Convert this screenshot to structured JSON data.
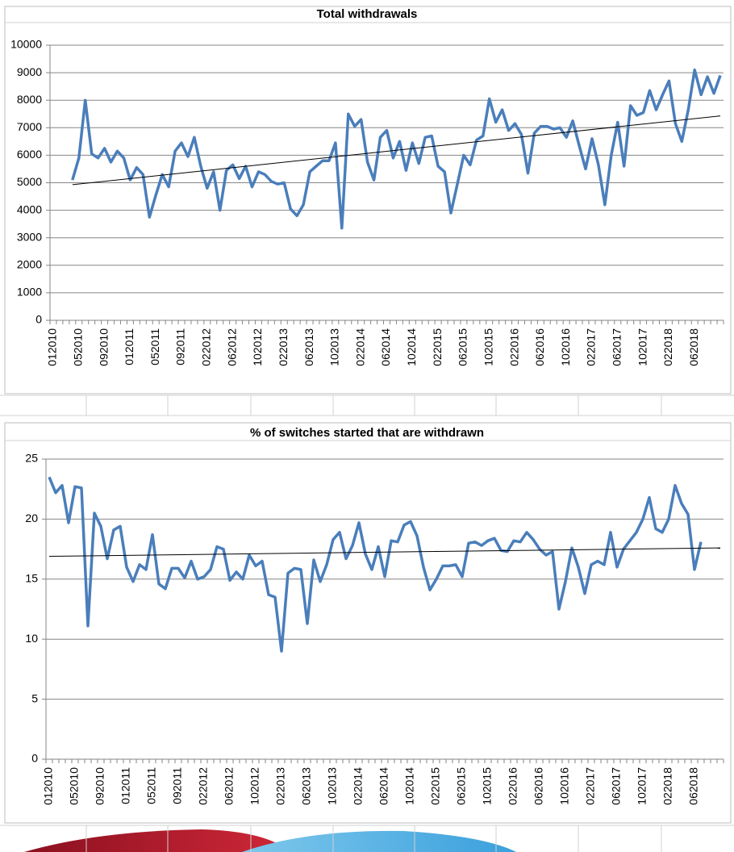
{
  "chart_data": [
    {
      "type": "line",
      "title": "Total withdrawals",
      "categories": [
        "012010",
        null,
        null,
        null,
        "052010",
        null,
        null,
        null,
        "092010",
        null,
        null,
        null,
        "012011",
        null,
        null,
        null,
        "052011",
        null,
        null,
        null,
        "092011",
        null,
        null,
        null,
        "022012",
        null,
        null,
        null,
        "062012",
        null,
        null,
        null,
        "102012",
        null,
        null,
        null,
        "022013",
        null,
        null,
        null,
        "062013",
        null,
        null,
        null,
        "102013",
        null,
        null,
        null,
        "022014",
        null,
        null,
        null,
        "062014",
        null,
        null,
        null,
        "102014",
        null,
        null,
        null,
        "022015",
        null,
        null,
        null,
        "062015",
        null,
        null,
        null,
        "102015",
        null,
        null,
        null,
        "022016",
        null,
        null,
        null,
        "062016",
        null,
        null,
        null,
        "102016",
        null,
        null,
        null,
        "022017",
        null,
        null,
        null,
        "062017",
        null,
        null,
        null,
        "102017",
        null,
        null,
        null,
        "022018",
        null,
        null,
        null,
        "062018",
        null,
        null,
        null,
        null
      ],
      "series": [
        {
          "color": "#4a7ebb",
          "values": [
            null,
            null,
            null,
            5100,
            5900,
            8000,
            6050,
            5900,
            6250,
            5750,
            6150,
            5900,
            5100,
            5550,
            5300,
            3750,
            4550,
            5300,
            4850,
            6150,
            6450,
            5950,
            6650,
            5600,
            4800,
            5400,
            4000,
            5450,
            5650,
            5150,
            5600,
            4850,
            5400,
            5300,
            5050,
            4950,
            5000,
            4050,
            3800,
            4200,
            5400,
            5600,
            5800,
            5800,
            6450,
            3350,
            7500,
            7050,
            7300,
            5750,
            5100,
            6650,
            6900,
            5900,
            6500,
            5450,
            6450,
            5700,
            6650,
            6700,
            5600,
            5400,
            3900,
            4950,
            6000,
            5650,
            6550,
            6700,
            8050,
            7200,
            7650,
            6900,
            7150,
            6750,
            5350,
            6800,
            7050,
            7050,
            6950,
            7000,
            6650,
            7250,
            6350,
            5500,
            6600,
            5650,
            4200,
            6000,
            7200,
            5600,
            7800,
            7450,
            7550,
            8350,
            7650,
            8200,
            8700,
            7150,
            6500,
            7650,
            9100,
            8200,
            8850,
            8250,
            8900
          ]
        }
      ],
      "trend": [
        4930,
        7430
      ],
      "trend_color": "#000000",
      "ylim": [
        0,
        10000
      ],
      "yticks": [
        0,
        1000,
        2000,
        3000,
        4000,
        5000,
        6000,
        7000,
        8000,
        9000,
        10000
      ],
      "grid": true
    },
    {
      "type": "line",
      "title": "% of switches started that are withdrawn",
      "categories": [
        "012010",
        null,
        null,
        null,
        "052010",
        null,
        null,
        null,
        "092010",
        null,
        null,
        null,
        "012011",
        null,
        null,
        null,
        "052011",
        null,
        null,
        null,
        "092011",
        null,
        null,
        null,
        "022012",
        null,
        null,
        null,
        "062012",
        null,
        null,
        null,
        "102012",
        null,
        null,
        null,
        "022013",
        null,
        null,
        null,
        "062013",
        null,
        null,
        null,
        "102013",
        null,
        null,
        null,
        "022014",
        null,
        null,
        null,
        "062014",
        null,
        null,
        null,
        "102014",
        null,
        null,
        null,
        "022015",
        null,
        null,
        null,
        "062015",
        null,
        null,
        null,
        "102015",
        null,
        null,
        null,
        "022016",
        null,
        null,
        null,
        "062016",
        null,
        null,
        null,
        "102016",
        null,
        null,
        null,
        "022017",
        null,
        null,
        null,
        "062017",
        null,
        null,
        null,
        "102017",
        null,
        null,
        null,
        "022018",
        null,
        null,
        null,
        "062018",
        null,
        null,
        null,
        null
      ],
      "series": [
        {
          "color": "#4a7ebb",
          "values": [
            23.5,
            22.2,
            22.8,
            19.7,
            22.7,
            22.6,
            11.1,
            20.5,
            19.4,
            16.7,
            19.1,
            19.4,
            16.0,
            14.8,
            16.2,
            15.8,
            18.7,
            14.6,
            14.2,
            15.9,
            15.9,
            15.1,
            16.5,
            15.0,
            15.2,
            15.8,
            17.7,
            17.5,
            14.9,
            15.6,
            15.0,
            17.0,
            16.1,
            16.5,
            13.7,
            13.5,
            9.0,
            15.5,
            15.9,
            15.8,
            11.3,
            16.6,
            14.8,
            16.2,
            18.3,
            18.9,
            16.7,
            17.8,
            19.7,
            17.1,
            15.8,
            17.7,
            15.2,
            18.2,
            18.1,
            19.5,
            19.8,
            18.6,
            16.0,
            14.1,
            15.0,
            16.1,
            16.1,
            16.2,
            15.2,
            18.0,
            18.1,
            17.8,
            18.2,
            18.4,
            17.4,
            17.3,
            18.2,
            18.1,
            18.9,
            18.3,
            17.5,
            17.0,
            17.3,
            12.5,
            14.8,
            17.6,
            16.0,
            13.8,
            16.2,
            16.5,
            16.2,
            18.9,
            16.0,
            17.5,
            18.2,
            18.9,
            20.0,
            21.8,
            19.2,
            18.9,
            20.0,
            22.8,
            21.3,
            20.4,
            15.8,
            18.1,
            null,
            null,
            null
          ]
        }
      ],
      "trend": [
        16.9,
        17.6
      ],
      "trend_color": "#000000",
      "ylim": [
        0,
        25
      ],
      "yticks": [
        0,
        5,
        10,
        15,
        20,
        25
      ],
      "grid": true
    }
  ]
}
